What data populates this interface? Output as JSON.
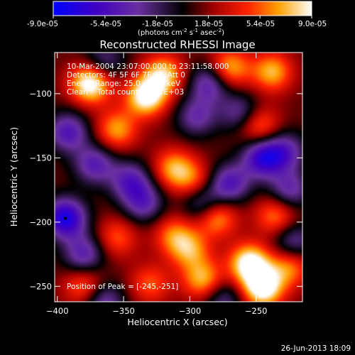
{
  "colorbar": {
    "ticks": [
      "-9.0e-05",
      "-5.4e-05",
      "-1.8e-05",
      "1.8e-05",
      "5.4e-05",
      "9.0e-05"
    ],
    "unit_label": "(photons cm",
    "unit_exp1": "-2",
    "unit_mid": " s",
    "unit_exp2": "-1",
    "unit_mid2": " asec",
    "unit_exp3": "-2",
    "unit_end": ")"
  },
  "chart_data": {
    "type": "heatmap",
    "title": "Reconstructed RHESSI Image",
    "xlabel": "Heliocentric X (arcsec)",
    "ylabel": "Heliocentric Y (arcsec)",
    "xlim": [
      -402,
      -215
    ],
    "ylim": [
      -262,
      -68
    ],
    "xticks": [
      -400,
      -350,
      -300,
      -250
    ],
    "yticks": [
      -100,
      -150,
      -200,
      -250
    ],
    "value_range": [
      -9e-05,
      9e-05
    ],
    "peak": [
      -245,
      -251
    ],
    "min_marker": [
      -394,
      -197
    ],
    "hot_spots": [
      {
        "x": -375,
        "y": -92,
        "v": 9e-05
      },
      {
        "x": -333,
        "y": -102,
        "v": 8.5e-05
      },
      {
        "x": -320,
        "y": -85,
        "v": 6.5e-05
      },
      {
        "x": -355,
        "y": -128,
        "v": 5.5e-05
      },
      {
        "x": -270,
        "y": -80,
        "v": 6e-05
      },
      {
        "x": -238,
        "y": -83,
        "v": 6e-05
      },
      {
        "x": -248,
        "y": -125,
        "v": 5e-05
      },
      {
        "x": -312,
        "y": -158,
        "v": 5.5e-05
      },
      {
        "x": -297,
        "y": -168,
        "v": 4e-05
      },
      {
        "x": -235,
        "y": -195,
        "v": 5e-05
      },
      {
        "x": -280,
        "y": -196,
        "v": 6e-05
      },
      {
        "x": -355,
        "y": -212,
        "v": 4e-05
      },
      {
        "x": -312,
        "y": -210,
        "v": 4.5e-05
      },
      {
        "x": -300,
        "y": -222,
        "v": 5e-05
      },
      {
        "x": -255,
        "y": -232,
        "v": 8.5e-05
      },
      {
        "x": -245,
        "y": -251,
        "v": 9e-05
      },
      {
        "x": -290,
        "y": -245,
        "v": 6e-05
      },
      {
        "x": -380,
        "y": -250,
        "v": 4.5e-05
      },
      {
        "x": -330,
        "y": -248,
        "v": 4e-05
      },
      {
        "x": -225,
        "y": -235,
        "v": 5e-05
      }
    ],
    "cold_spots": [
      {
        "x": -392,
        "y": -130,
        "v": -6e-05
      },
      {
        "x": -372,
        "y": -155,
        "v": -5.5e-05
      },
      {
        "x": -394,
        "y": -197,
        "v": -9e-05
      },
      {
        "x": -380,
        "y": -225,
        "v": -5.5e-05
      },
      {
        "x": -345,
        "y": -168,
        "v": -5.5e-05
      },
      {
        "x": -335,
        "y": -185,
        "v": -5e-05
      },
      {
        "x": -285,
        "y": -92,
        "v": -5.5e-05
      },
      {
        "x": -295,
        "y": -118,
        "v": -4.5e-05
      },
      {
        "x": -262,
        "y": -115,
        "v": -4.5e-05
      },
      {
        "x": -228,
        "y": -145,
        "v": -5e-05
      },
      {
        "x": -245,
        "y": -150,
        "v": -7.5e-05
      },
      {
        "x": -270,
        "y": -170,
        "v": -6e-05
      },
      {
        "x": -225,
        "y": -175,
        "v": -5e-05
      },
      {
        "x": -290,
        "y": -185,
        "v": -5e-05
      },
      {
        "x": -365,
        "y": -262,
        "v": -5e-05
      },
      {
        "x": -275,
        "y": -260,
        "v": -4e-05
      },
      {
        "x": -222,
        "y": -215,
        "v": -4.5e-05
      },
      {
        "x": -365,
        "y": -75,
        "v": -4e-05
      }
    ]
  },
  "annotations": {
    "line1": "10-Mar-2004 23:07:00.000 to 23:11:58.000",
    "line2": "Detectors: 4F 5F 6F 7F 8F, Att 0",
    "line3": "Energy Range: 25.0 - 50.0 keV",
    "line4": "Clean    Total counts: 4.82E+03",
    "peak_label": "Position of Peak = [-245,-251]"
  },
  "footer": {
    "date": "26-Jun-2013 18:09"
  }
}
